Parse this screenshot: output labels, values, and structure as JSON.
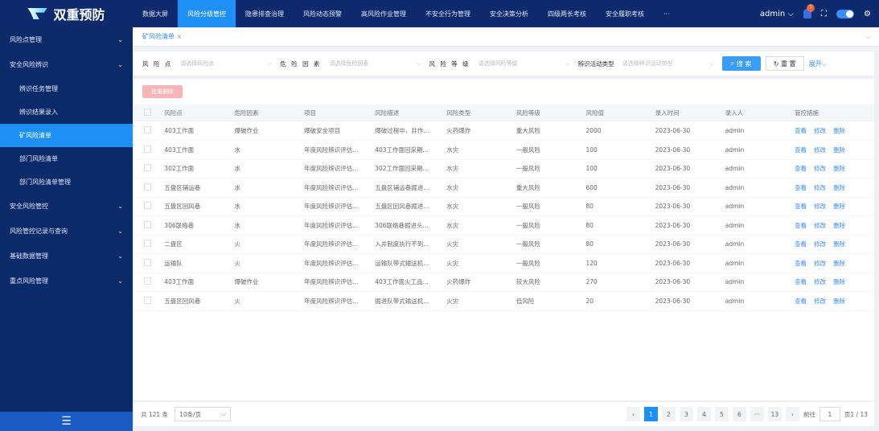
{
  "app": {
    "title": "双重预防"
  },
  "nav": [
    "数据大屏",
    "风险分级管控",
    "隐患排查治理",
    "风险动态预警",
    "高风险作业管理",
    "不安全行为管理",
    "安全决策分析",
    "四级两长考核",
    "安全履职考核",
    "···"
  ],
  "nav_active": 1,
  "header": {
    "user": "admin",
    "notif_count": "7"
  },
  "sidebar": {
    "items": [
      {
        "label": "风险点管理",
        "type": "group"
      },
      {
        "label": "安全风险辨识",
        "type": "group"
      },
      {
        "label": "辨识任务管理",
        "type": "sub"
      },
      {
        "label": "辨识结果录入",
        "type": "sub"
      },
      {
        "label": "矿风险清单",
        "type": "sub",
        "active": true
      },
      {
        "label": "部门风险清单",
        "type": "sub"
      },
      {
        "label": "部门风险清单管理",
        "type": "sub"
      },
      {
        "label": "安全风险管控",
        "type": "group"
      },
      {
        "label": "风险管控记录与查询",
        "type": "group"
      },
      {
        "label": "基础数据管理",
        "type": "group"
      },
      {
        "label": "重点风险管理",
        "type": "group"
      }
    ]
  },
  "tabs": [
    {
      "label": "矿风险清单",
      "close": "×"
    }
  ],
  "filter": {
    "f1_label": "风 险 点",
    "f1_placeholder": "请选择风险点",
    "f2_label": "危 险 因 素",
    "f2_placeholder": "请选择危险因素",
    "f3_label": "风 险 等 级",
    "f3_placeholder": "请选择风险等级",
    "f4_label": "辨识活动类型",
    "f4_placeholder": "请选择辨识活动类型",
    "search": "搜 索",
    "reset": "重 置",
    "expand": "展开"
  },
  "batch_delete": "批量删除",
  "table": {
    "columns": [
      "风险点",
      "危险因素",
      "项目",
      "风险描述",
      "风险类型",
      "风险等级",
      "风险值",
      "录入时间",
      "录入人",
      "管控措施"
    ],
    "actions": [
      "查看",
      "修改",
      "删除"
    ],
    "rows": [
      [
        "403工作面",
        "爆破作业",
        "爆破安全项目",
        "爆破过程中，井作...",
        "火药爆炸",
        "重大风险",
        "2000",
        "2023-06-30",
        "admin"
      ],
      [
        "403工作面",
        "水",
        "年度风险辨识评估...",
        "403工作面回采期...",
        "水灾",
        "一般风险",
        "100",
        "2023-06-30",
        "admin"
      ],
      [
        "302工作面",
        "水",
        "年度风险辨识评估...",
        "302工作面回采期...",
        "水灾",
        "一般风险",
        "100",
        "2023-06-30",
        "admin"
      ],
      [
        "五盘区辅运巷",
        "水",
        "年度风险辨识评估...",
        "五盘区辅运巷掘进...",
        "水灾",
        "重大风险",
        "600",
        "2023-06-30",
        "admin"
      ],
      [
        "五盘区回风巷",
        "水",
        "年度风险辨识评估...",
        "五盘区回风巷掘进...",
        "水灾",
        "一般风险",
        "80",
        "2023-06-30",
        "admin"
      ],
      [
        "306联络巷",
        "水",
        "年度风险辨识评估...",
        "306联络巷掘进头...",
        "水灾",
        "一般风险",
        "80",
        "2023-06-30",
        "admin"
      ],
      [
        "二盘区",
        "火",
        "年度风险辨识评估...",
        "入井制度执行不到...",
        "火灾",
        "一般风险",
        "80",
        "2023-06-30",
        "admin"
      ],
      [
        "运输队",
        "火",
        "年度风险辨识评估...",
        "运输队带式输送机...",
        "火灾",
        "一般风险",
        "120",
        "2023-06-30",
        "admin"
      ],
      [
        "403工作面",
        "爆破作业",
        "年度风险辨识评估...",
        "403工作面火工品...",
        "火药爆炸",
        "较大风险",
        "270",
        "2023-06-30",
        "admin"
      ],
      [
        "五盘区回风巷",
        "火",
        "年度风险辨识评估...",
        "掘进队带式输送机...",
        "火灾",
        "低风险",
        "20",
        "2023-06-30",
        "admin"
      ]
    ]
  },
  "footer": {
    "total": "共 121 条",
    "page_size": "10条/页",
    "pages": [
      "1",
      "2",
      "3",
      "4",
      "5",
      "6",
      "···",
      "13"
    ],
    "current": "1",
    "goto_label": "前往",
    "goto_value": "1",
    "page_info": "页1 / 13"
  }
}
